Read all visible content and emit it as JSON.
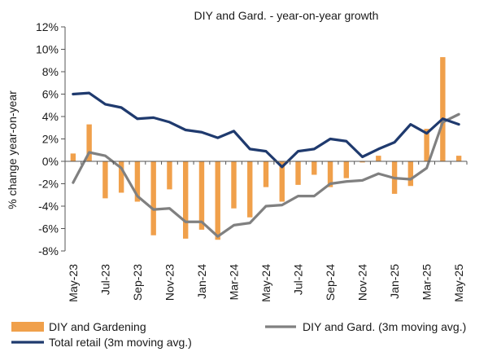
{
  "chart_data": {
    "type": "bar",
    "title": "DIY and Gard. - year-on-year  growth",
    "ylabel": "% change year-on-year",
    "xlabel": "",
    "ylim": [
      -8,
      12
    ],
    "yticks": [
      -8,
      -6,
      -4,
      -2,
      0,
      2,
      4,
      6,
      8,
      10,
      12
    ],
    "ytick_labels": [
      "-8%",
      "-6%",
      "-4%",
      "-2%",
      "0%",
      "2%",
      "4%",
      "6%",
      "8%",
      "10%",
      "12%"
    ],
    "grid": false,
    "legend_position": "bottom",
    "categories": [
      "May-23",
      "Jun-23",
      "Jul-23",
      "Aug-23",
      "Sep-23",
      "Oct-23",
      "Nov-23",
      "Dec-23",
      "Jan-24",
      "Feb-24",
      "Mar-24",
      "Apr-24",
      "May-24",
      "Jun-24",
      "Jul-24",
      "Aug-24",
      "Sep-24",
      "Oct-24",
      "Nov-24",
      "Dec-24",
      "Jan-25",
      "Feb-25",
      "Mar-25",
      "Apr-25",
      "May-25"
    ],
    "x_tick_labels": [
      "May-23",
      "Jul-23",
      "Sep-23",
      "Nov-23",
      "Jan-24",
      "Mar-24",
      "May-24",
      "Jul-24",
      "Sep-24",
      "Nov-24",
      "Jan-25",
      "Mar-25",
      "May-25"
    ],
    "series": [
      {
        "name": "DIY and Gardening",
        "kind": "bar",
        "color": "#f0a04b",
        "values": [
          0.7,
          3.3,
          -3.3,
          -2.8,
          -3.6,
          -6.6,
          -2.5,
          -6.9,
          -6.1,
          -7.0,
          -4.2,
          -5.0,
          -2.3,
          -3.6,
          -2.1,
          -1.2,
          -2.3,
          -1.5,
          -0.1,
          0.5,
          -2.9,
          -2.2,
          2.9,
          9.3,
          0.5
        ]
      },
      {
        "name": "DIY and Gard. (3m moving avg.)",
        "kind": "line",
        "color": "#808080",
        "values": [
          -1.9,
          0.8,
          0.5,
          -0.6,
          -3.1,
          -4.3,
          -4.2,
          -5.4,
          -5.4,
          -6.7,
          -5.7,
          -5.5,
          -4.0,
          -3.9,
          -3.1,
          -3.1,
          -2.0,
          -1.8,
          -1.7,
          -1.1,
          -1.5,
          -1.6,
          -0.6,
          3.5,
          4.2
        ]
      },
      {
        "name": "Total retail (3m moving avg.)",
        "kind": "line",
        "color": "#1f3a6e",
        "values": [
          6.0,
          6.1,
          5.1,
          4.8,
          3.8,
          3.9,
          3.5,
          2.8,
          2.6,
          2.1,
          2.7,
          1.1,
          0.9,
          -0.5,
          0.9,
          1.1,
          2.0,
          1.8,
          0.4,
          1.1,
          1.7,
          3.3,
          2.5,
          3.8,
          3.3
        ]
      }
    ]
  }
}
